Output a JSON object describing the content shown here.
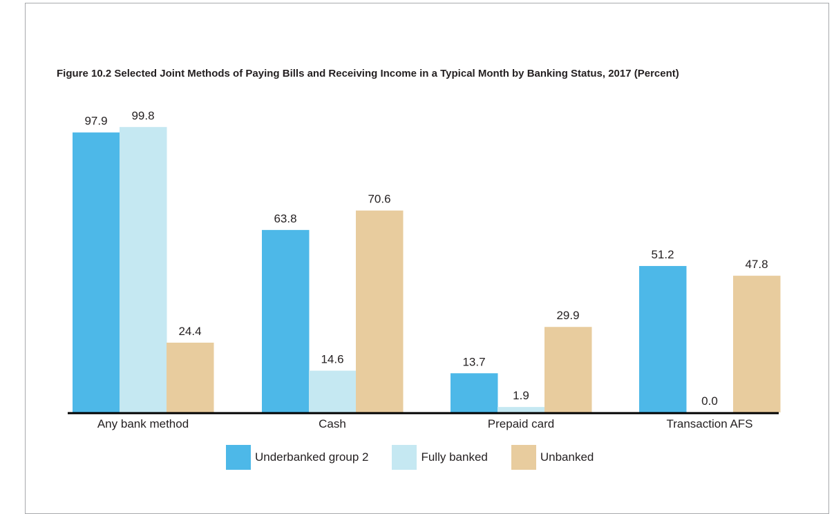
{
  "chart_data": {
    "type": "bar",
    "title": "Figure 10.2 Selected Joint Methods of Paying Bills and Receiving Income in a Typical Month by Banking Status, 2017 (Percent)",
    "categories": [
      "Any bank method",
      "Cash",
      "Prepaid card",
      "Transaction AFS"
    ],
    "series": [
      {
        "name": "Underbanked group 2",
        "color": "#4db8e8",
        "values": [
          97.9,
          63.8,
          13.7,
          51.2
        ]
      },
      {
        "name": "Fully banked",
        "color": "#c5e8f2",
        "values": [
          99.8,
          14.6,
          1.9,
          0.0
        ]
      },
      {
        "name": "Unbanked",
        "color": "#e8cc9e",
        "values": [
          24.4,
          70.6,
          29.9,
          47.8
        ]
      }
    ],
    "value_labels": [
      [
        "97.9",
        "63.8",
        "13.7",
        "51.2"
      ],
      [
        "99.8",
        "14.6",
        "1.9",
        "0.0"
      ],
      [
        "24.4",
        "70.6",
        "29.9",
        "47.8"
      ]
    ],
    "ylim": [
      0,
      100
    ],
    "grid": false,
    "legend_position": "bottom",
    "axis_color": "#000000"
  }
}
